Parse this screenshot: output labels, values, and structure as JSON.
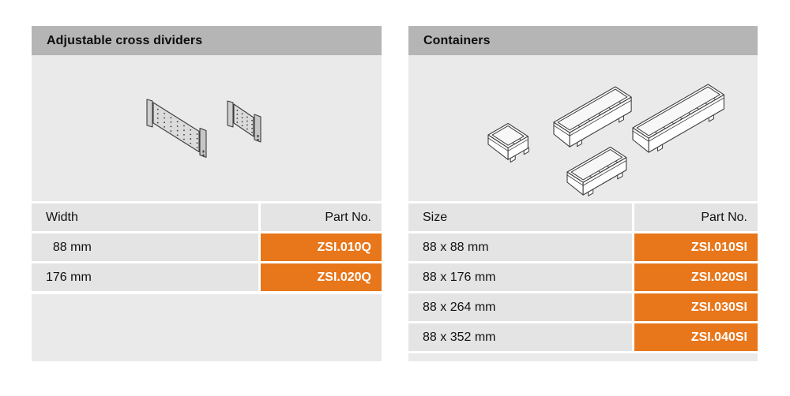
{
  "colors": {
    "accent_orange": "#e8761a",
    "title_bar_gray": "#b5b5b5",
    "illustration_bg_gray": "#eaeaea",
    "row_bg_gray": "#e4e4e4",
    "text_dark": "#111111",
    "part_no_text_white": "#ffffff"
  },
  "panels": [
    {
      "title": "Adjustable cross dividers",
      "illustration_icon": "cross-dividers-illustration",
      "table": {
        "col1_header": "Width",
        "col2_header": "Part No.",
        "rows": [
          {
            "label": "  88 mm",
            "part_no": "ZSI.010Q"
          },
          {
            "label": "176 mm",
            "part_no": "ZSI.020Q"
          }
        ]
      }
    },
    {
      "title": "Containers",
      "illustration_icon": "containers-illustration",
      "table": {
        "col1_header": "Size",
        "col2_header": "Part No.",
        "rows": [
          {
            "label": "88 x 88 mm",
            "part_no": "ZSI.010SI"
          },
          {
            "label": "88 x 176 mm",
            "part_no": "ZSI.020SI"
          },
          {
            "label": "88 x 264 mm",
            "part_no": "ZSI.030SI"
          },
          {
            "label": "88 x 352 mm",
            "part_no": "ZSI.040SI"
          }
        ]
      }
    }
  ]
}
